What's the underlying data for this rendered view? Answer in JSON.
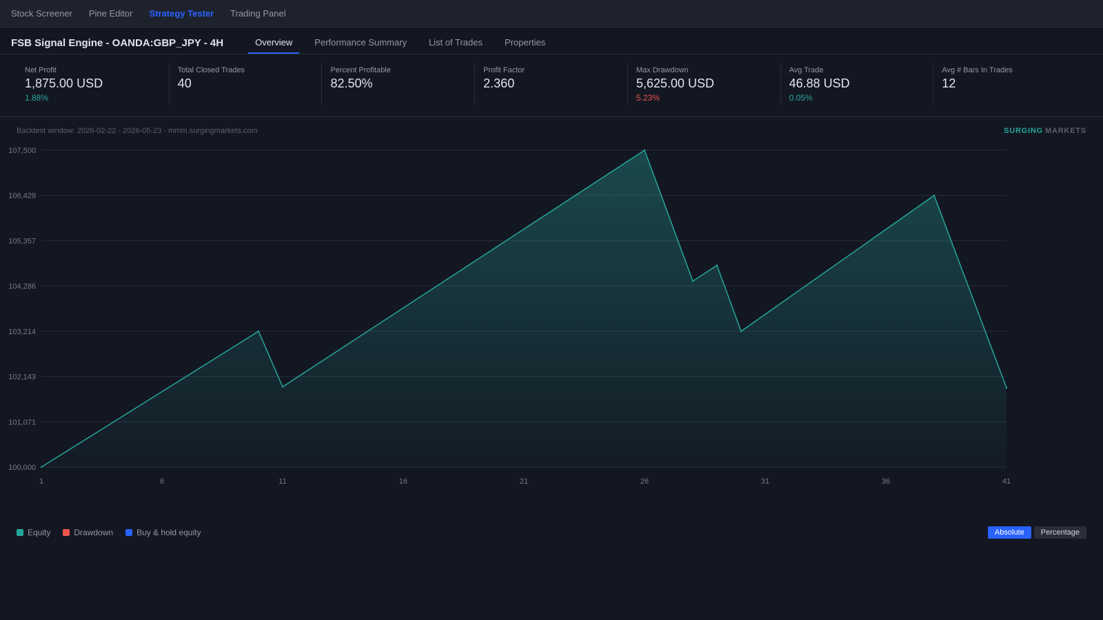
{
  "topnav": {
    "items": [
      {
        "label": "Stock Screener"
      },
      {
        "label": "Pine Editor"
      },
      {
        "label": "Strategy Tester"
      },
      {
        "label": "Trading Panel"
      }
    ]
  },
  "header": {
    "title": "FSB Signal Engine - OANDA:GBP_JPY - 4H",
    "tabs": [
      {
        "label": "Overview"
      },
      {
        "label": "Performance Summary"
      },
      {
        "label": "List of Trades"
      },
      {
        "label": "Properties"
      }
    ]
  },
  "stats": [
    {
      "label": "Net Profit",
      "value": "1,875.00 USD",
      "sub": "1.88%",
      "sub_color": "#26a69a"
    },
    {
      "label": "Total Closed Trades",
      "value": "40",
      "sub": "",
      "sub_color": ""
    },
    {
      "label": "Percent Profitable",
      "value": "82.50%",
      "sub": "",
      "sub_color": ""
    },
    {
      "label": "Profit Factor",
      "value": "2.360",
      "sub": "",
      "sub_color": ""
    },
    {
      "label": "Max Drawdown",
      "value": "5,625.00 USD",
      "sub": "5.23%",
      "sub_color": "#ef5350"
    },
    {
      "label": "Avg Trade",
      "value": "46.88 USD",
      "sub": "0.05%",
      "sub_color": "#26a69a"
    },
    {
      "label": "Avg # Bars In Trades",
      "value": "12",
      "sub": "",
      "sub_color": ""
    }
  ],
  "chart": {
    "backtest_note": "Backtest window: 2026-02-22 - 2026-05-23 - mmm.surgingmarkets.com",
    "brand_part1": "SURGING",
    "brand_part2": "MARKETS"
  },
  "chart_data": {
    "type": "area",
    "x": [
      1,
      10,
      11,
      26,
      28,
      29,
      30,
      38,
      41
    ],
    "series": [
      {
        "name": "Equity",
        "color": "#26a69a",
        "values": [
          100000,
          103214,
          101900,
          107500,
          104400,
          104775,
          103214,
          106429,
          101875
        ]
      }
    ],
    "xticks": [
      1,
      6,
      11,
      16,
      21,
      26,
      31,
      36,
      41
    ],
    "yticks": [
      "100,000",
      "101,071",
      "102,143",
      "103,214",
      "104,286",
      "105,357",
      "106,429",
      "107,500"
    ],
    "xlim": [
      1,
      41
    ],
    "ylim": [
      100000,
      107500
    ],
    "grid": true
  },
  "legend": [
    {
      "label": "Equity",
      "color": "#26a69a"
    },
    {
      "label": "Drawdown",
      "color": "#ef5350"
    },
    {
      "label": "Buy & hold equity",
      "color": "#2962ff"
    }
  ],
  "toggles": [
    {
      "label": "Absolute",
      "active": true
    },
    {
      "label": "Percentage",
      "active": false
    }
  ]
}
